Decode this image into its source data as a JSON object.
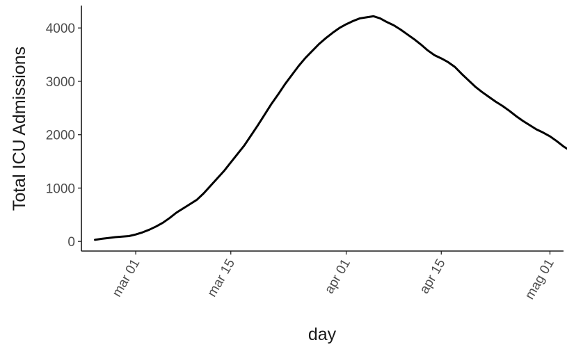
{
  "chart_data": {
    "type": "line",
    "xlabel": "day",
    "ylabel": "Total ICU Admissions",
    "xlim": [
      "2020-02-22",
      "2020-05-03"
    ],
    "ylim": [
      -180,
      4420
    ],
    "grid": false,
    "line_color": "#000000",
    "y_ticks": [
      {
        "value": 0,
        "label": "0"
      },
      {
        "value": 1000,
        "label": "1000"
      },
      {
        "value": 2000,
        "label": "2000"
      },
      {
        "value": 3000,
        "label": "3000"
      },
      {
        "value": 4000,
        "label": "4000"
      }
    ],
    "x_ticks": [
      {
        "value": "2020-03-01",
        "label": "mar 01"
      },
      {
        "value": "2020-03-15",
        "label": "mar 15"
      },
      {
        "value": "2020-04-01",
        "label": "apr 01"
      },
      {
        "value": "2020-04-15",
        "label": "apr 15"
      },
      {
        "value": "2020-05-01",
        "label": "mag 01"
      }
    ],
    "series": [
      {
        "points": [
          [
            "2020-02-24",
            30
          ],
          [
            "2020-02-25",
            50
          ],
          [
            "2020-02-26",
            65
          ],
          [
            "2020-02-27",
            80
          ],
          [
            "2020-02-28",
            90
          ],
          [
            "2020-02-29",
            100
          ],
          [
            "2020-03-01",
            130
          ],
          [
            "2020-03-02",
            170
          ],
          [
            "2020-03-03",
            220
          ],
          [
            "2020-03-04",
            280
          ],
          [
            "2020-03-05",
            350
          ],
          [
            "2020-03-06",
            440
          ],
          [
            "2020-03-07",
            540
          ],
          [
            "2020-03-08",
            620
          ],
          [
            "2020-03-09",
            700
          ],
          [
            "2020-03-10",
            780
          ],
          [
            "2020-03-11",
            900
          ],
          [
            "2020-03-12",
            1040
          ],
          [
            "2020-03-13",
            1180
          ],
          [
            "2020-03-14",
            1320
          ],
          [
            "2020-03-15",
            1480
          ],
          [
            "2020-03-16",
            1640
          ],
          [
            "2020-03-17",
            1800
          ],
          [
            "2020-03-18",
            1990
          ],
          [
            "2020-03-19",
            2180
          ],
          [
            "2020-03-20",
            2380
          ],
          [
            "2020-03-21",
            2580
          ],
          [
            "2020-03-22",
            2760
          ],
          [
            "2020-03-23",
            2950
          ],
          [
            "2020-03-24",
            3120
          ],
          [
            "2020-03-25",
            3290
          ],
          [
            "2020-03-26",
            3440
          ],
          [
            "2020-03-27",
            3570
          ],
          [
            "2020-03-28",
            3700
          ],
          [
            "2020-03-29",
            3810
          ],
          [
            "2020-03-30",
            3910
          ],
          [
            "2020-03-31",
            4000
          ],
          [
            "2020-04-01",
            4070
          ],
          [
            "2020-04-02",
            4130
          ],
          [
            "2020-04-03",
            4180
          ],
          [
            "2020-04-04",
            4200
          ],
          [
            "2020-04-05",
            4220
          ],
          [
            "2020-04-06",
            4180
          ],
          [
            "2020-04-07",
            4110
          ],
          [
            "2020-04-08",
            4050
          ],
          [
            "2020-04-09",
            3970
          ],
          [
            "2020-04-10",
            3880
          ],
          [
            "2020-04-11",
            3790
          ],
          [
            "2020-04-12",
            3690
          ],
          [
            "2020-04-13",
            3580
          ],
          [
            "2020-04-14",
            3490
          ],
          [
            "2020-04-15",
            3430
          ],
          [
            "2020-04-16",
            3360
          ],
          [
            "2020-04-17",
            3270
          ],
          [
            "2020-04-18",
            3140
          ],
          [
            "2020-04-19",
            3020
          ],
          [
            "2020-04-20",
            2900
          ],
          [
            "2020-04-21",
            2800
          ],
          [
            "2020-04-22",
            2710
          ],
          [
            "2020-04-23",
            2620
          ],
          [
            "2020-04-24",
            2540
          ],
          [
            "2020-04-25",
            2450
          ],
          [
            "2020-04-26",
            2350
          ],
          [
            "2020-04-27",
            2260
          ],
          [
            "2020-04-28",
            2180
          ],
          [
            "2020-04-29",
            2100
          ],
          [
            "2020-04-30",
            2040
          ],
          [
            "2020-05-01",
            1970
          ],
          [
            "2020-05-02",
            1880
          ],
          [
            "2020-05-03",
            1780
          ],
          [
            "2020-05-04",
            1700
          ]
        ]
      }
    ]
  }
}
